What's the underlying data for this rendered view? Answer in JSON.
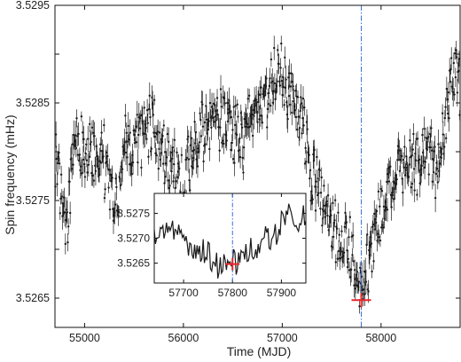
{
  "chart_data": [
    {
      "type": "scatter",
      "title": "",
      "xlabel": "Time (MJD)",
      "ylabel": "Spin frequency (mHz)",
      "xlim": [
        54700,
        58800
      ],
      "ylim": [
        3.5262,
        3.5295
      ],
      "xticks": [
        55000,
        56000,
        57000,
        58000
      ],
      "xtick_labels": [
        "55000",
        "56000",
        "57000",
        "58000"
      ],
      "yticks": [
        3.5265,
        3.5275,
        3.5285,
        3.5295
      ],
      "ytick_labels": [
        "3.5265",
        "3.5275",
        "3.5285",
        "3.5295"
      ],
      "marker_color": "#1a1a1a",
      "grid": false,
      "series": [
        {
          "values_x": [
            54700,
            54780,
            54830,
            54870,
            54920,
            55000,
            55100,
            55200,
            55280,
            55350,
            55400,
            55500,
            55600,
            55700,
            55750,
            55800,
            55870,
            55950,
            56000,
            56050,
            56120,
            56200,
            56300,
            56400,
            56450,
            56500,
            56600,
            56700,
            56800,
            56900,
            57000,
            57100,
            57200,
            57250,
            57300,
            57400,
            57500,
            57600,
            57700,
            57750,
            57800,
            57850,
            57950,
            58050,
            58150,
            58250,
            58350,
            58450,
            58550,
            58650,
            58750,
            58800
          ],
          "values_y": [
            3.5279,
            3.5274,
            3.5272,
            3.528,
            3.5281,
            3.528,
            3.528,
            3.5279,
            3.5276,
            3.5275,
            3.5281,
            3.5281,
            3.5282,
            3.5283,
            3.528,
            3.528,
            3.5279,
            3.5277,
            3.5276,
            3.5279,
            3.5281,
            3.5282,
            3.5284,
            3.5283,
            3.5283,
            3.5282,
            3.5281,
            3.5284,
            3.5285,
            3.5287,
            3.5288,
            3.5285,
            3.5283,
            3.528,
            3.5278,
            3.5275,
            3.5272,
            3.5271,
            3.527,
            3.5268,
            3.5265,
            3.5268,
            3.5272,
            3.5275,
            3.5278,
            3.5279,
            3.5279,
            3.528,
            3.5278,
            3.5283,
            3.5289,
            3.5287
          ]
        }
      ],
      "annotations": [
        {
          "type": "vertical-line",
          "x": 57800,
          "color": "#3a6fd8",
          "style": "dash-dot"
        },
        {
          "type": "cross-marker",
          "x": 57800,
          "y": 3.52648,
          "color": "#e8262b"
        }
      ]
    },
    {
      "type": "line",
      "title": "",
      "xlabel": "",
      "ylabel": "",
      "xlim": [
        57640,
        57950
      ],
      "ylim": [
        3.5261,
        3.5279
      ],
      "xticks": [
        57700,
        57800,
        57900
      ],
      "xtick_labels": [
        "57700",
        "57800",
        "57900"
      ],
      "yticks": [
        3.5265,
        3.527,
        3.5275
      ],
      "ytick_labels": [
        "3.5265",
        "3.5270",
        "3.5275"
      ],
      "legend": "none",
      "series": [
        {
          "x": [
            57640,
            57655,
            57670,
            57690,
            57705,
            57720,
            57740,
            57760,
            57775,
            57790,
            57800,
            57810,
            57825,
            57840,
            57855,
            57870,
            57885,
            57900,
            57910,
            57920,
            57935,
            57950
          ],
          "y": [
            3.5272,
            3.5271,
            3.5271,
            3.527,
            3.527,
            3.5268,
            3.5267,
            3.5266,
            3.5264,
            3.5264,
            3.52645,
            3.5266,
            3.5267,
            3.5268,
            3.5269,
            3.527,
            3.5271,
            3.5273,
            3.5276,
            3.5274,
            3.5274,
            3.5274
          ]
        }
      ],
      "annotations": [
        {
          "type": "vertical-line",
          "x": 57800,
          "color": "#3a6fd8",
          "style": "dash-dot"
        },
        {
          "type": "cross-marker",
          "x": 57800,
          "y": 3.52648,
          "color": "#e8262b"
        }
      ]
    }
  ]
}
